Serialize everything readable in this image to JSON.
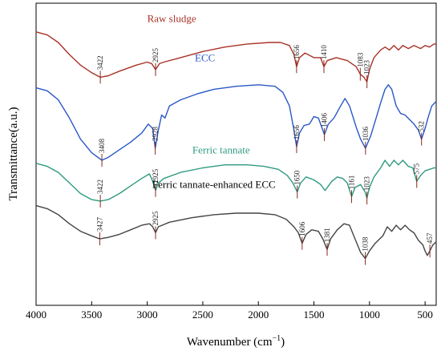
{
  "chart_data": {
    "type": "line",
    "title": "",
    "xlabel": "Wavenumber (cm",
    "xlabel_sup": "−1",
    "xlabel_end": ")",
    "ylabel": "Transmittance(a.u.)",
    "xlim": [
      4000,
      400
    ],
    "x_reversed": true,
    "ylim": [
      0,
      100
    ],
    "grid": false,
    "legend": "inline labels",
    "x_ticks": [
      4000,
      3500,
      3000,
      2500,
      2000,
      1500,
      1000,
      500
    ],
    "x_tick_labels": [
      "4000",
      "3500",
      "3000",
      "2500",
      "2000",
      "1500",
      "1000",
      "500"
    ],
    "series": [
      {
        "name": "Raw sludge",
        "color": "#a83227",
        "label_x": 2780,
        "label_y": 93.8,
        "points": [
          [
            4000,
            90.5
          ],
          [
            3900,
            89.5
          ],
          [
            3800,
            87
          ],
          [
            3700,
            83
          ],
          [
            3600,
            79.5
          ],
          [
            3500,
            77
          ],
          [
            3422,
            75.5
          ],
          [
            3350,
            76
          ],
          [
            3250,
            77.5
          ],
          [
            3100,
            79.5
          ],
          [
            3000,
            80.5
          ],
          [
            2960,
            80
          ],
          [
            2925,
            78
          ],
          [
            2890,
            80
          ],
          [
            2850,
            80.5
          ],
          [
            2700,
            82
          ],
          [
            2500,
            84
          ],
          [
            2300,
            85.5
          ],
          [
            2100,
            86.5
          ],
          [
            1900,
            87
          ],
          [
            1800,
            87
          ],
          [
            1720,
            86
          ],
          [
            1680,
            83
          ],
          [
            1656,
            79
          ],
          [
            1630,
            82
          ],
          [
            1580,
            83.5
          ],
          [
            1500,
            82
          ],
          [
            1440,
            82
          ],
          [
            1410,
            79
          ],
          [
            1380,
            81
          ],
          [
            1300,
            82
          ],
          [
            1200,
            81
          ],
          [
            1120,
            79
          ],
          [
            1083,
            76.5
          ],
          [
            1050,
            75.5
          ],
          [
            1023,
            74
          ],
          [
            1000,
            78
          ],
          [
            960,
            82
          ],
          [
            900,
            84.5
          ],
          [
            860,
            85.5
          ],
          [
            820,
            84.5
          ],
          [
            780,
            86
          ],
          [
            740,
            84.5
          ],
          [
            700,
            86
          ],
          [
            650,
            85
          ],
          [
            600,
            86
          ],
          [
            540,
            85
          ],
          [
            500,
            86
          ],
          [
            460,
            85.5
          ],
          [
            420,
            86.5
          ],
          [
            400,
            86.5
          ]
        ],
        "peaks": [
          {
            "x": 3422,
            "y": 75.5,
            "label": "3422"
          },
          {
            "x": 2925,
            "y": 78,
            "label": "2925"
          },
          {
            "x": 1656,
            "y": 79,
            "label": "1656"
          },
          {
            "x": 1410,
            "y": 79,
            "label": "1410"
          },
          {
            "x": 1083,
            "y": 76.5,
            "label": "1083"
          },
          {
            "x": 1023,
            "y": 74,
            "label": "1023"
          }
        ]
      },
      {
        "name": "ECC",
        "color": "#2a58c6",
        "label_x": 2480,
        "label_y": 80.8,
        "points": [
          [
            4000,
            72
          ],
          [
            3900,
            71
          ],
          [
            3800,
            68
          ],
          [
            3700,
            62
          ],
          [
            3600,
            55
          ],
          [
            3500,
            50.5
          ],
          [
            3408,
            48
          ],
          [
            3350,
            49
          ],
          [
            3250,
            51.5
          ],
          [
            3150,
            54
          ],
          [
            3050,
            57
          ],
          [
            2990,
            60
          ],
          [
            2950,
            58.5
          ],
          [
            2928,
            52
          ],
          [
            2900,
            58
          ],
          [
            2870,
            63
          ],
          [
            2840,
            62
          ],
          [
            2800,
            66
          ],
          [
            2700,
            68
          ],
          [
            2550,
            70
          ],
          [
            2400,
            71.5
          ],
          [
            2200,
            72.5
          ],
          [
            2000,
            73
          ],
          [
            1850,
            72.5
          ],
          [
            1780,
            70.5
          ],
          [
            1720,
            66
          ],
          [
            1680,
            58
          ],
          [
            1656,
            52.5
          ],
          [
            1630,
            57
          ],
          [
            1590,
            59.5
          ],
          [
            1540,
            60
          ],
          [
            1500,
            62.5
          ],
          [
            1460,
            62
          ],
          [
            1406,
            56.5
          ],
          [
            1370,
            60
          ],
          [
            1320,
            62
          ],
          [
            1260,
            66
          ],
          [
            1220,
            68.5
          ],
          [
            1180,
            66
          ],
          [
            1120,
            59
          ],
          [
            1080,
            55
          ],
          [
            1036,
            52
          ],
          [
            990,
            56
          ],
          [
            940,
            62
          ],
          [
            900,
            67
          ],
          [
            860,
            71.5
          ],
          [
            830,
            73
          ],
          [
            800,
            71.5
          ],
          [
            760,
            66
          ],
          [
            720,
            63.5
          ],
          [
            680,
            63
          ],
          [
            640,
            61.5
          ],
          [
            600,
            60
          ],
          [
            560,
            58
          ],
          [
            532,
            55
          ],
          [
            500,
            58.5
          ],
          [
            470,
            62.5
          ],
          [
            440,
            66
          ],
          [
            400,
            67.5
          ]
        ],
        "peaks": [
          {
            "x": 3408,
            "y": 48,
            "label": "3408"
          },
          {
            "x": 2928,
            "y": 52,
            "label": "2928"
          },
          {
            "x": 1656,
            "y": 52.5,
            "label": "1656"
          },
          {
            "x": 1406,
            "y": 56.5,
            "label": "1406"
          },
          {
            "x": 1036,
            "y": 52,
            "label": "1036"
          },
          {
            "x": 532,
            "y": 55,
            "label": "532"
          }
        ]
      },
      {
        "name": "Ferric tannate",
        "color": "#2e9a80",
        "label_x": 2335,
        "label_y": 50.2,
        "points": [
          [
            4000,
            47
          ],
          [
            3900,
            46
          ],
          [
            3800,
            44
          ],
          [
            3700,
            40.5
          ],
          [
            3600,
            37
          ],
          [
            3500,
            35
          ],
          [
            3422,
            34.5
          ],
          [
            3350,
            35
          ],
          [
            3250,
            37
          ],
          [
            3150,
            39.5
          ],
          [
            3050,
            42
          ],
          [
            2980,
            43.5
          ],
          [
            2950,
            41
          ],
          [
            2925,
            38
          ],
          [
            2900,
            40.5
          ],
          [
            2850,
            42
          ],
          [
            2700,
            44
          ],
          [
            2500,
            45.5
          ],
          [
            2300,
            46.5
          ],
          [
            2100,
            46.5
          ],
          [
            1950,
            46
          ],
          [
            1820,
            45
          ],
          [
            1740,
            43
          ],
          [
            1690,
            40.5
          ],
          [
            1650,
            37.5
          ],
          [
            1620,
            40.5
          ],
          [
            1570,
            42.5
          ],
          [
            1500,
            41.5
          ],
          [
            1440,
            40
          ],
          [
            1400,
            38
          ],
          [
            1340,
            41
          ],
          [
            1290,
            42.5
          ],
          [
            1240,
            42
          ],
          [
            1200,
            40.5
          ],
          [
            1161,
            36
          ],
          [
            1130,
            39
          ],
          [
            1080,
            40
          ],
          [
            1040,
            37.5
          ],
          [
            1023,
            35.5
          ],
          [
            1000,
            39
          ],
          [
            960,
            42.5
          ],
          [
            900,
            45.5
          ],
          [
            860,
            48
          ],
          [
            820,
            46
          ],
          [
            780,
            48
          ],
          [
            740,
            46.5
          ],
          [
            700,
            48
          ],
          [
            650,
            46
          ],
          [
            610,
            45.5
          ],
          [
            575,
            41
          ],
          [
            540,
            43
          ],
          [
            500,
            44.5
          ],
          [
            460,
            45
          ],
          [
            420,
            45.5
          ],
          [
            400,
            45.5
          ]
        ],
        "peaks": [
          {
            "x": 3422,
            "y": 34.5,
            "label": "3422"
          },
          {
            "x": 2925,
            "y": 38,
            "label": "2925"
          },
          {
            "x": 1650,
            "y": 37.5,
            "label": "1650"
          },
          {
            "x": 1161,
            "y": 36,
            "label": "1161"
          },
          {
            "x": 1023,
            "y": 35.5,
            "label": "1023"
          },
          {
            "x": 575,
            "y": 41,
            "label": "575"
          }
        ]
      },
      {
        "name": "Ferric tannate-enhanced ECC",
        "color": "#444444",
        "label_x": 2400,
        "label_y": 38.8,
        "points": [
          [
            4000,
            33
          ],
          [
            3900,
            32
          ],
          [
            3800,
            30
          ],
          [
            3700,
            27
          ],
          [
            3600,
            24.5
          ],
          [
            3500,
            23
          ],
          [
            3427,
            22
          ],
          [
            3350,
            22.5
          ],
          [
            3250,
            23.5
          ],
          [
            3150,
            25
          ],
          [
            3050,
            26.5
          ],
          [
            2980,
            27
          ],
          [
            2950,
            26
          ],
          [
            2925,
            24
          ],
          [
            2900,
            26
          ],
          [
            2800,
            27.5
          ],
          [
            2600,
            29
          ],
          [
            2400,
            30
          ],
          [
            2200,
            30.5
          ],
          [
            2000,
            30.5
          ],
          [
            1850,
            30
          ],
          [
            1750,
            28.5
          ],
          [
            1680,
            26
          ],
          [
            1640,
            24
          ],
          [
            1606,
            20.5
          ],
          [
            1570,
            23.5
          ],
          [
            1520,
            25
          ],
          [
            1460,
            24.5
          ],
          [
            1420,
            22
          ],
          [
            1381,
            18.5
          ],
          [
            1350,
            22
          ],
          [
            1290,
            25
          ],
          [
            1230,
            27
          ],
          [
            1180,
            26.5
          ],
          [
            1130,
            22
          ],
          [
            1080,
            17.5
          ],
          [
            1038,
            15.5
          ],
          [
            1000,
            18
          ],
          [
            950,
            20.5
          ],
          [
            880,
            23
          ],
          [
            840,
            26
          ],
          [
            800,
            24.5
          ],
          [
            760,
            26.5
          ],
          [
            720,
            25
          ],
          [
            680,
            26.5
          ],
          [
            640,
            25
          ],
          [
            600,
            24
          ],
          [
            560,
            21.5
          ],
          [
            520,
            20
          ],
          [
            500,
            18
          ],
          [
            480,
            16.5
          ],
          [
            457,
            18
          ],
          [
            430,
            20
          ],
          [
            400,
            21
          ]
        ],
        "peaks": [
          {
            "x": 3427,
            "y": 22,
            "label": "3427"
          },
          {
            "x": 2925,
            "y": 24,
            "label": "2925"
          },
          {
            "x": 1606,
            "y": 20.5,
            "label": "1606"
          },
          {
            "x": 1381,
            "y": 18.5,
            "label": "1381"
          },
          {
            "x": 1038,
            "y": 15.5,
            "label": "1038"
          },
          {
            "x": 457,
            "y": 18,
            "label": "457"
          }
        ]
      }
    ]
  }
}
